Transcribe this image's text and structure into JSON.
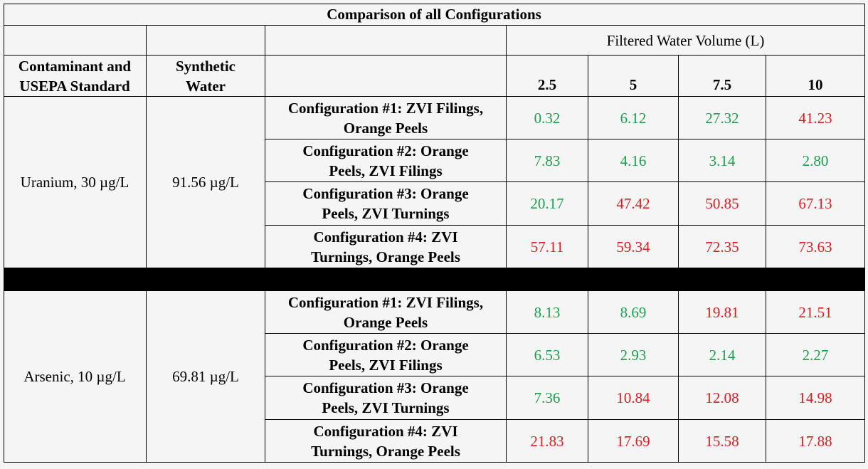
{
  "title": "Comparison of all Configurations",
  "volume_header": "Filtered Water Volume (L)",
  "col_headers": {
    "contaminant": "Contaminant and\nUSEPA Standard",
    "synthetic": "Synthetic\nWater"
  },
  "volumes": [
    "2.5",
    "5",
    "7.5",
    "10"
  ],
  "colors": {
    "pass": "#17a24a",
    "fail": "#e8191e",
    "separator": "#000000"
  },
  "sections": [
    {
      "contaminant": "Uranium, 30 µg/L",
      "synthetic": "91.56 µg/L",
      "rows": [
        {
          "config": "Configuration #1: ZVI Filings,\nOrange Peels",
          "values": [
            "0.32",
            "6.12",
            "27.32",
            "41.23"
          ],
          "pass": [
            true,
            true,
            true,
            false
          ]
        },
        {
          "config": "Configuration #2: Orange\nPeels, ZVI Filings",
          "values": [
            "7.83",
            "4.16",
            "3.14",
            "2.80"
          ],
          "pass": [
            true,
            true,
            true,
            true
          ]
        },
        {
          "config": "Configuration #3: Orange\nPeels, ZVI Turnings",
          "values": [
            "20.17",
            "47.42",
            "50.85",
            "67.13"
          ],
          "pass": [
            true,
            false,
            false,
            false
          ]
        },
        {
          "config": "Configuration #4: ZVI\nTurnings, Orange Peels",
          "values": [
            "57.11",
            "59.34",
            "72.35",
            "73.63"
          ],
          "pass": [
            false,
            false,
            false,
            false
          ]
        }
      ]
    },
    {
      "contaminant": "Arsenic, 10 µg/L",
      "synthetic": "69.81 µg/L",
      "rows": [
        {
          "config": "Configuration #1: ZVI Filings,\nOrange Peels",
          "values": [
            "8.13",
            "8.69",
            "19.81",
            "21.51"
          ],
          "pass": [
            true,
            true,
            false,
            false
          ]
        },
        {
          "config": "Configuration #2: Orange\nPeels, ZVI Filings",
          "values": [
            "6.53",
            "2.93",
            "2.14",
            "2.27"
          ],
          "pass": [
            true,
            true,
            true,
            true
          ]
        },
        {
          "config": "Configuration #3: Orange\nPeels, ZVI Turnings",
          "values": [
            "7.36",
            "10.84",
            "12.08",
            "14.98"
          ],
          "pass": [
            true,
            false,
            false,
            false
          ]
        },
        {
          "config": "Configuration #4: ZVI\nTurnings, Orange Peels",
          "values": [
            "21.83",
            "17.69",
            "15.58",
            "17.88"
          ],
          "pass": [
            false,
            false,
            false,
            false
          ]
        }
      ]
    }
  ]
}
